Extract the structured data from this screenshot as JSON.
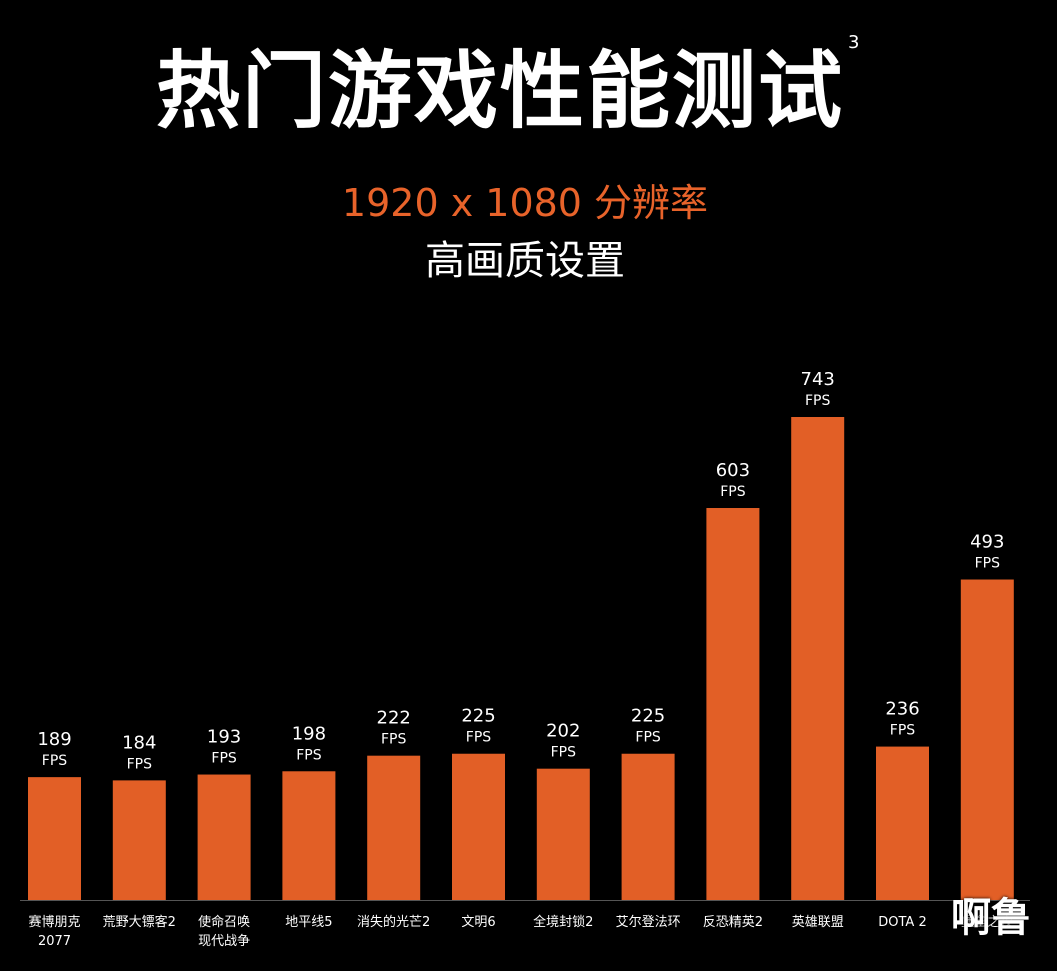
{
  "header": {
    "title": "热门游戏性能测试",
    "footnote": "3",
    "subtitle": "1920 x 1080 分辨率",
    "subtitle2": "高画质设置"
  },
  "watermark": "啊鲁",
  "colors": {
    "bar": "#e25f26",
    "accent": "#e8632a",
    "background": "#000000"
  },
  "chart_data": {
    "type": "bar",
    "unit": "FPS",
    "categories": [
      [
        "赛博朋克",
        "2077"
      ],
      [
        "荒野大镖客2"
      ],
      [
        "使命召唤",
        "现代战争"
      ],
      [
        "地平线5"
      ],
      [
        "消失的光芒2"
      ],
      [
        "文明6"
      ],
      [
        "全境封锁2"
      ],
      [
        "艾尔登法环"
      ],
      [
        "反恐精英2"
      ],
      [
        "英雄联盟"
      ],
      [
        "DOTA 2"
      ],
      [
        "堡垒之夜"
      ]
    ],
    "values": [
      189,
      184,
      193,
      198,
      222,
      225,
      202,
      225,
      603,
      743,
      236,
      493
    ],
    "ylim": [
      0,
      743
    ],
    "grid": false,
    "legend": "none"
  }
}
